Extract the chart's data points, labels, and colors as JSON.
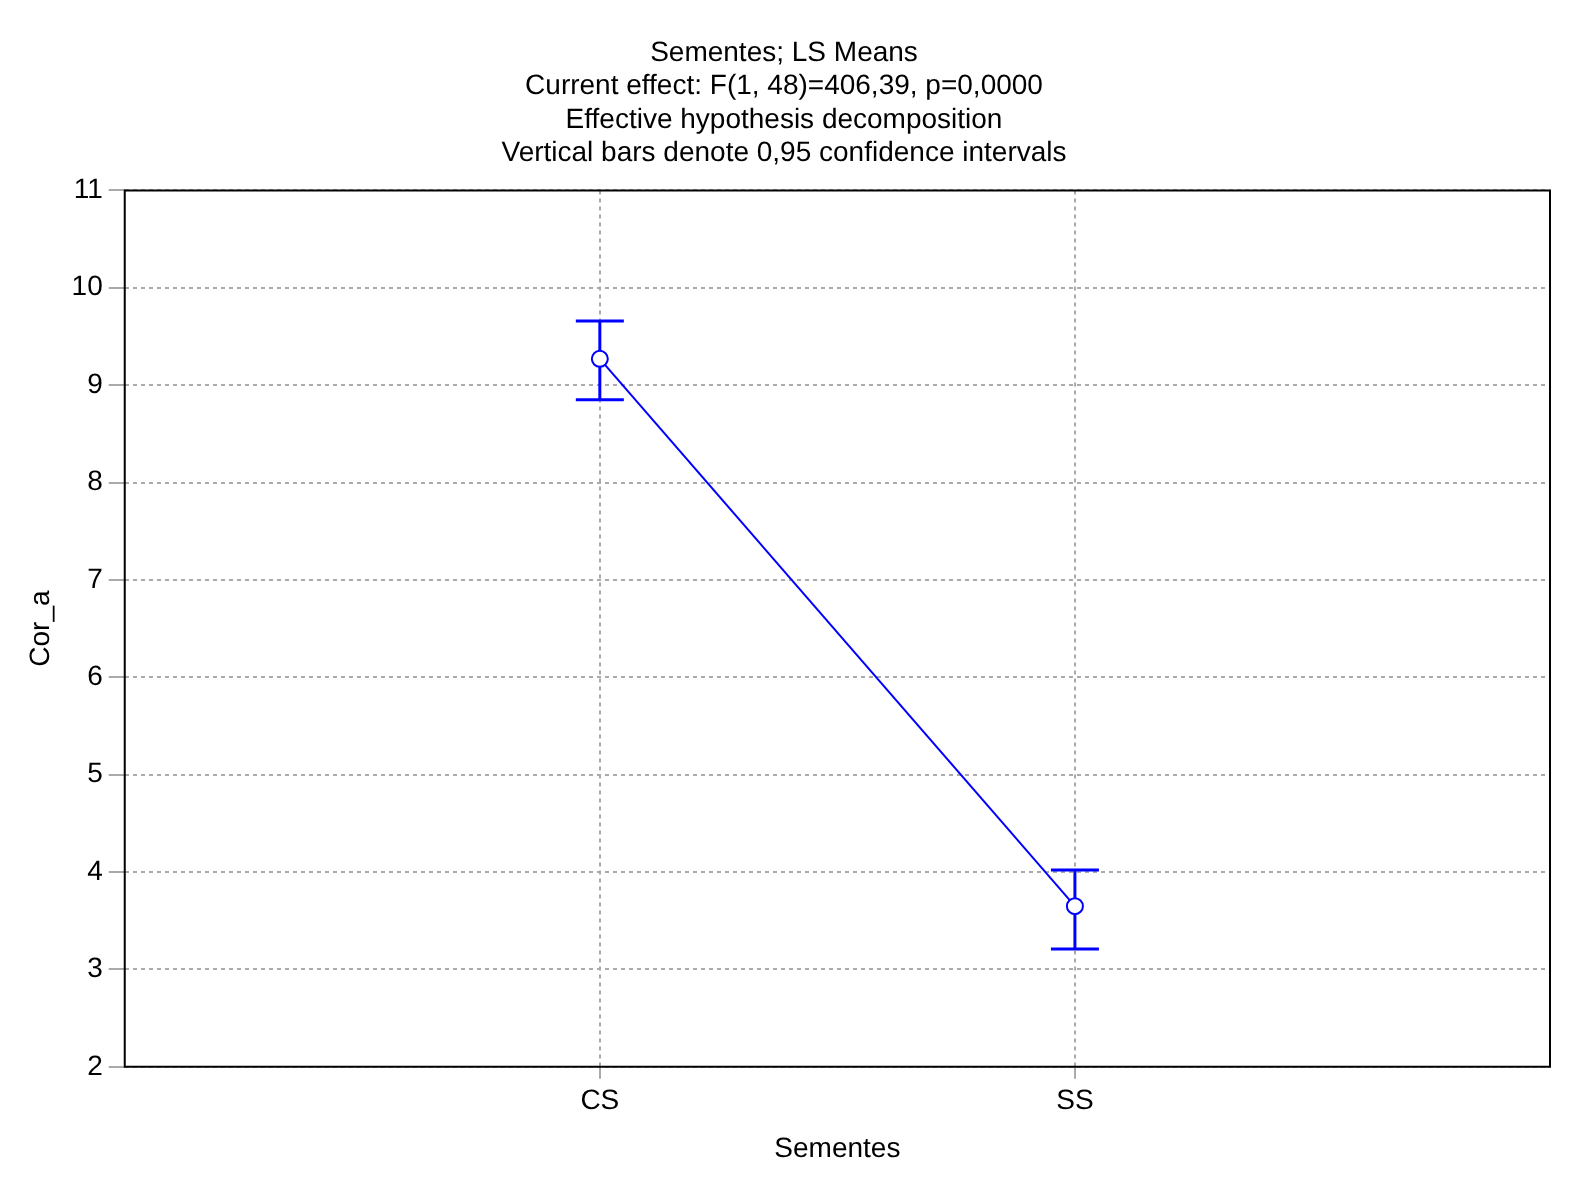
{
  "chart_data": {
    "type": "line",
    "title": "Sementes; LS Means",
    "subtitle": "Current effect: F(1, 48)=406,39, p=0,0000",
    "annotations": [
      "Effective hypothesis decomposition",
      "Vertical bars denote 0,95 confidence intervals"
    ],
    "xlabel": "Sementes",
    "ylabel": "Cor_a",
    "categories": [
      "CS",
      "SS"
    ],
    "series": [
      {
        "color": "#0000ff",
        "values": [
          9.27,
          3.65
        ],
        "errors": [
          [
            8.85,
            9.66
          ],
          [
            3.21,
            4.02
          ]
        ]
      }
    ],
    "ylim": [
      2,
      11
    ],
    "yticks": [
      2,
      3,
      4,
      5,
      6,
      7,
      8,
      9,
      10,
      11
    ],
    "grid": true,
    "legend": false,
    "marker": "circle",
    "line_style": "solid"
  }
}
